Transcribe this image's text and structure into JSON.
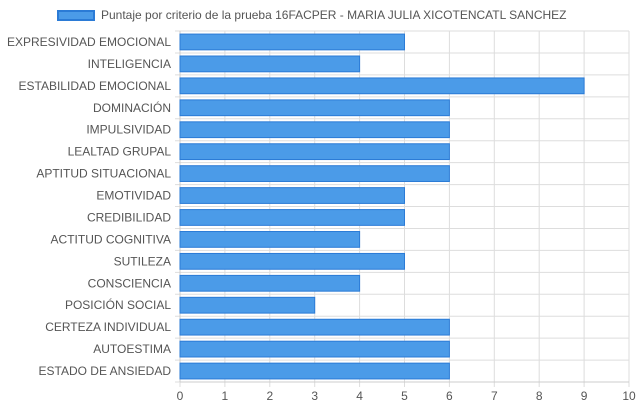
{
  "chart_data": {
    "type": "bar",
    "orientation": "horizontal",
    "title": "",
    "xlabel": "",
    "ylabel": "",
    "xlim": [
      0,
      10
    ],
    "x_ticks": [
      "0",
      "1",
      "2",
      "3",
      "4",
      "5",
      "6",
      "7",
      "8",
      "9",
      "10"
    ],
    "grid": true,
    "legend_position": "top",
    "categories": [
      "EXPRESIVIDAD EMOCIONAL",
      "INTELIGENCIA",
      "ESTABILIDAD EMOCIONAL",
      "DOMINACIÓN",
      "IMPULSIVIDAD",
      "LEALTAD GRUPAL",
      "APTITUD SITUACIONAL",
      "EMOTIVIDAD",
      "CREDIBILIDAD",
      "ACTITUD COGNITIVA",
      "SUTILEZA",
      "CONSCIENCIA",
      "POSICIÓN SOCIAL",
      "CERTEZA INDIVIDUAL",
      "AUTOESTIMA",
      "ESTADO DE ANSIEDAD"
    ],
    "series": [
      {
        "name": "Puntaje por criterio de la prueba 16FACPER - MARIA JULIA XICOTENCATL SANCHEZ",
        "values": [
          5,
          4,
          9,
          6,
          6,
          6,
          6,
          5,
          5,
          4,
          5,
          4,
          3,
          6,
          6,
          6
        ],
        "color": "#4b9be8",
        "border_color": "#2b7bd6"
      }
    ],
    "grid_color": "#dddddd",
    "axis_label_color": "#555555"
  }
}
